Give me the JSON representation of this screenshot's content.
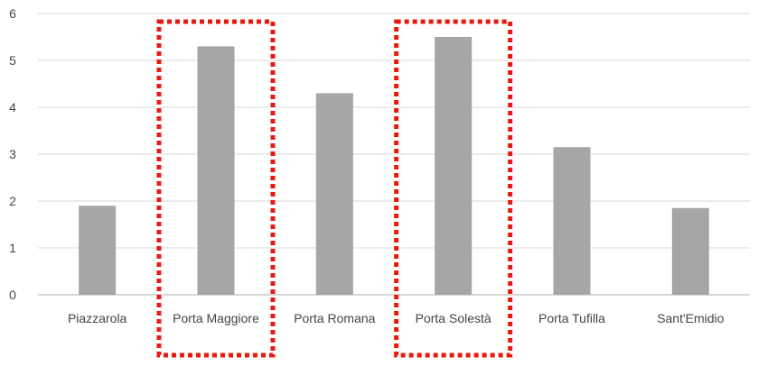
{
  "chart_data": {
    "type": "bar",
    "title": "",
    "xlabel": "",
    "ylabel": "",
    "ylim": [
      0,
      6
    ],
    "yticks": [
      0,
      1,
      2,
      3,
      4,
      5,
      6
    ],
    "grid": "horizontal",
    "categories": [
      "Piazzarola",
      "Porta Maggiore",
      "Porta Romana",
      "Porta Solestà",
      "Porta Tufilla",
      "Sant'Emidio"
    ],
    "values": [
      1.9,
      5.3,
      4.3,
      5.5,
      3.15,
      1.85
    ],
    "highlighted": [
      "Porta Maggiore",
      "Porta Solestà"
    ],
    "colors": {
      "bar": "#a6a6a6",
      "highlight_box": "#e8190f",
      "grid": "#d9d9d9",
      "axis": "#bfbfbf",
      "text": "#444444"
    }
  }
}
